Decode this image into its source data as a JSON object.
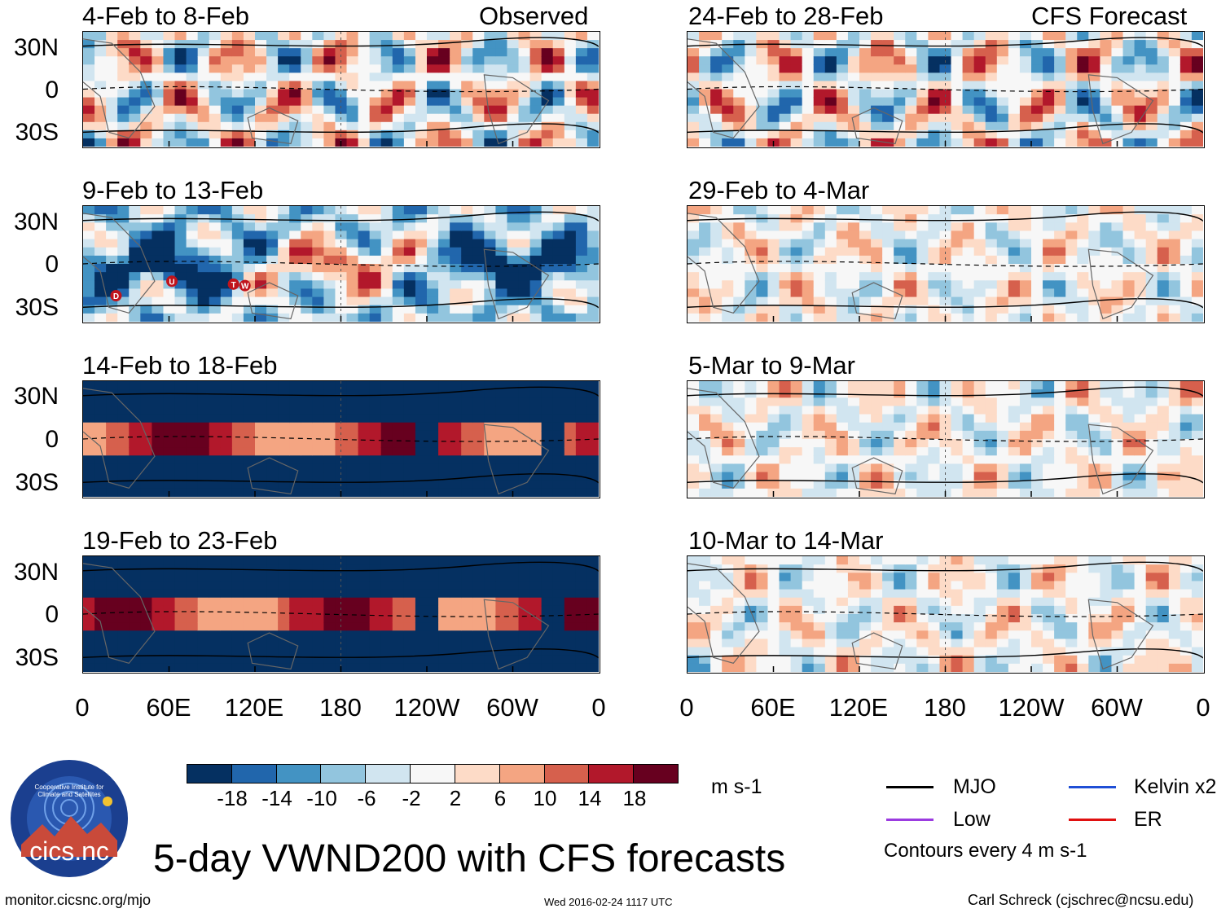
{
  "chart_data": {
    "type": "heatmap",
    "title": "5-day VWND200 with CFS forecasts",
    "variable": "VWND200",
    "units": "m s-1",
    "columns": [
      {
        "label": "Observed",
        "panels": [
          {
            "title": "4-Feb to 8-Feb",
            "pattern": "mixed"
          },
          {
            "title": "9-Feb to 13-Feb",
            "pattern": "strong-negative"
          },
          {
            "title": "14-Feb to 18-Feb",
            "pattern": "band-positive"
          },
          {
            "title": "19-Feb to 23-Feb",
            "pattern": "band-positive"
          }
        ]
      },
      {
        "label": "CFS Forecast",
        "panels": [
          {
            "title": "24-Feb to 28-Feb",
            "pattern": "mixed"
          },
          {
            "title": "29-Feb to 4-Mar",
            "pattern": "weak"
          },
          {
            "title": "5-Mar to 9-Mar",
            "pattern": "weak"
          },
          {
            "title": "10-Mar to 14-Mar",
            "pattern": "weak"
          }
        ]
      }
    ],
    "y_ticks": [
      "30N",
      "0",
      "30S"
    ],
    "x_ticks": [
      "0",
      "60E",
      "120E",
      "180",
      "120W",
      "60W",
      "0"
    ],
    "xlim": [
      0,
      360
    ],
    "ylim": [
      -40,
      40
    ],
    "colorbar": {
      "labels": [
        "-18",
        "-14",
        "-10",
        "-6",
        "-2",
        "2",
        "6",
        "10",
        "14",
        "18"
      ],
      "colors": [
        "#053061",
        "#2166ac",
        "#4393c3",
        "#92c5de",
        "#d1e5f0",
        "#f7f7f7",
        "#fddbc7",
        "#f4a582",
        "#d6604d",
        "#b2182b",
        "#67001f"
      ],
      "units": "m s-1"
    },
    "legend": [
      {
        "label": "MJO",
        "color": "#000000"
      },
      {
        "label": "Kelvin x2",
        "color": "#1f4fd6"
      },
      {
        "label": "Low",
        "color": "#9b3be0"
      },
      {
        "label": "ER",
        "color": "#e01010"
      }
    ],
    "contour_note": "Contours every 4 m s-1",
    "markers": [
      "D",
      "U",
      "T",
      "W"
    ]
  },
  "footer": {
    "url": "monitor.cicsnc.org/mjo",
    "timestamp": "Wed 2016-02-24 1117 UTC",
    "author": "Carl Schreck (cjschrec@ncsu.edu)"
  },
  "logo": {
    "name": "cics.nc",
    "ring_text": "Cooperative Institute for Climate and Satellites"
  }
}
